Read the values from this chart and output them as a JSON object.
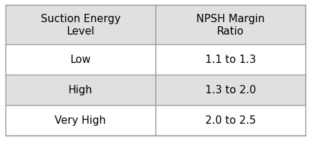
{
  "header": [
    "Suction Energy\nLevel",
    "NPSH Margin\nRatio"
  ],
  "rows": [
    [
      "Low",
      "1.1 to 1.3"
    ],
    [
      "High",
      "1.3 to 2.0"
    ],
    [
      "Very High",
      "2.0 to 2.5"
    ]
  ],
  "header_bg": "#e0e0e0",
  "row_bg": [
    "#ffffff",
    "#e0e0e0",
    "#ffffff"
  ],
  "border_color": "#999999",
  "text_color": "#000000",
  "font_size": 11,
  "header_font_size": 11,
  "fig_width": 4.5,
  "fig_height": 2.05,
  "dpi": 100
}
